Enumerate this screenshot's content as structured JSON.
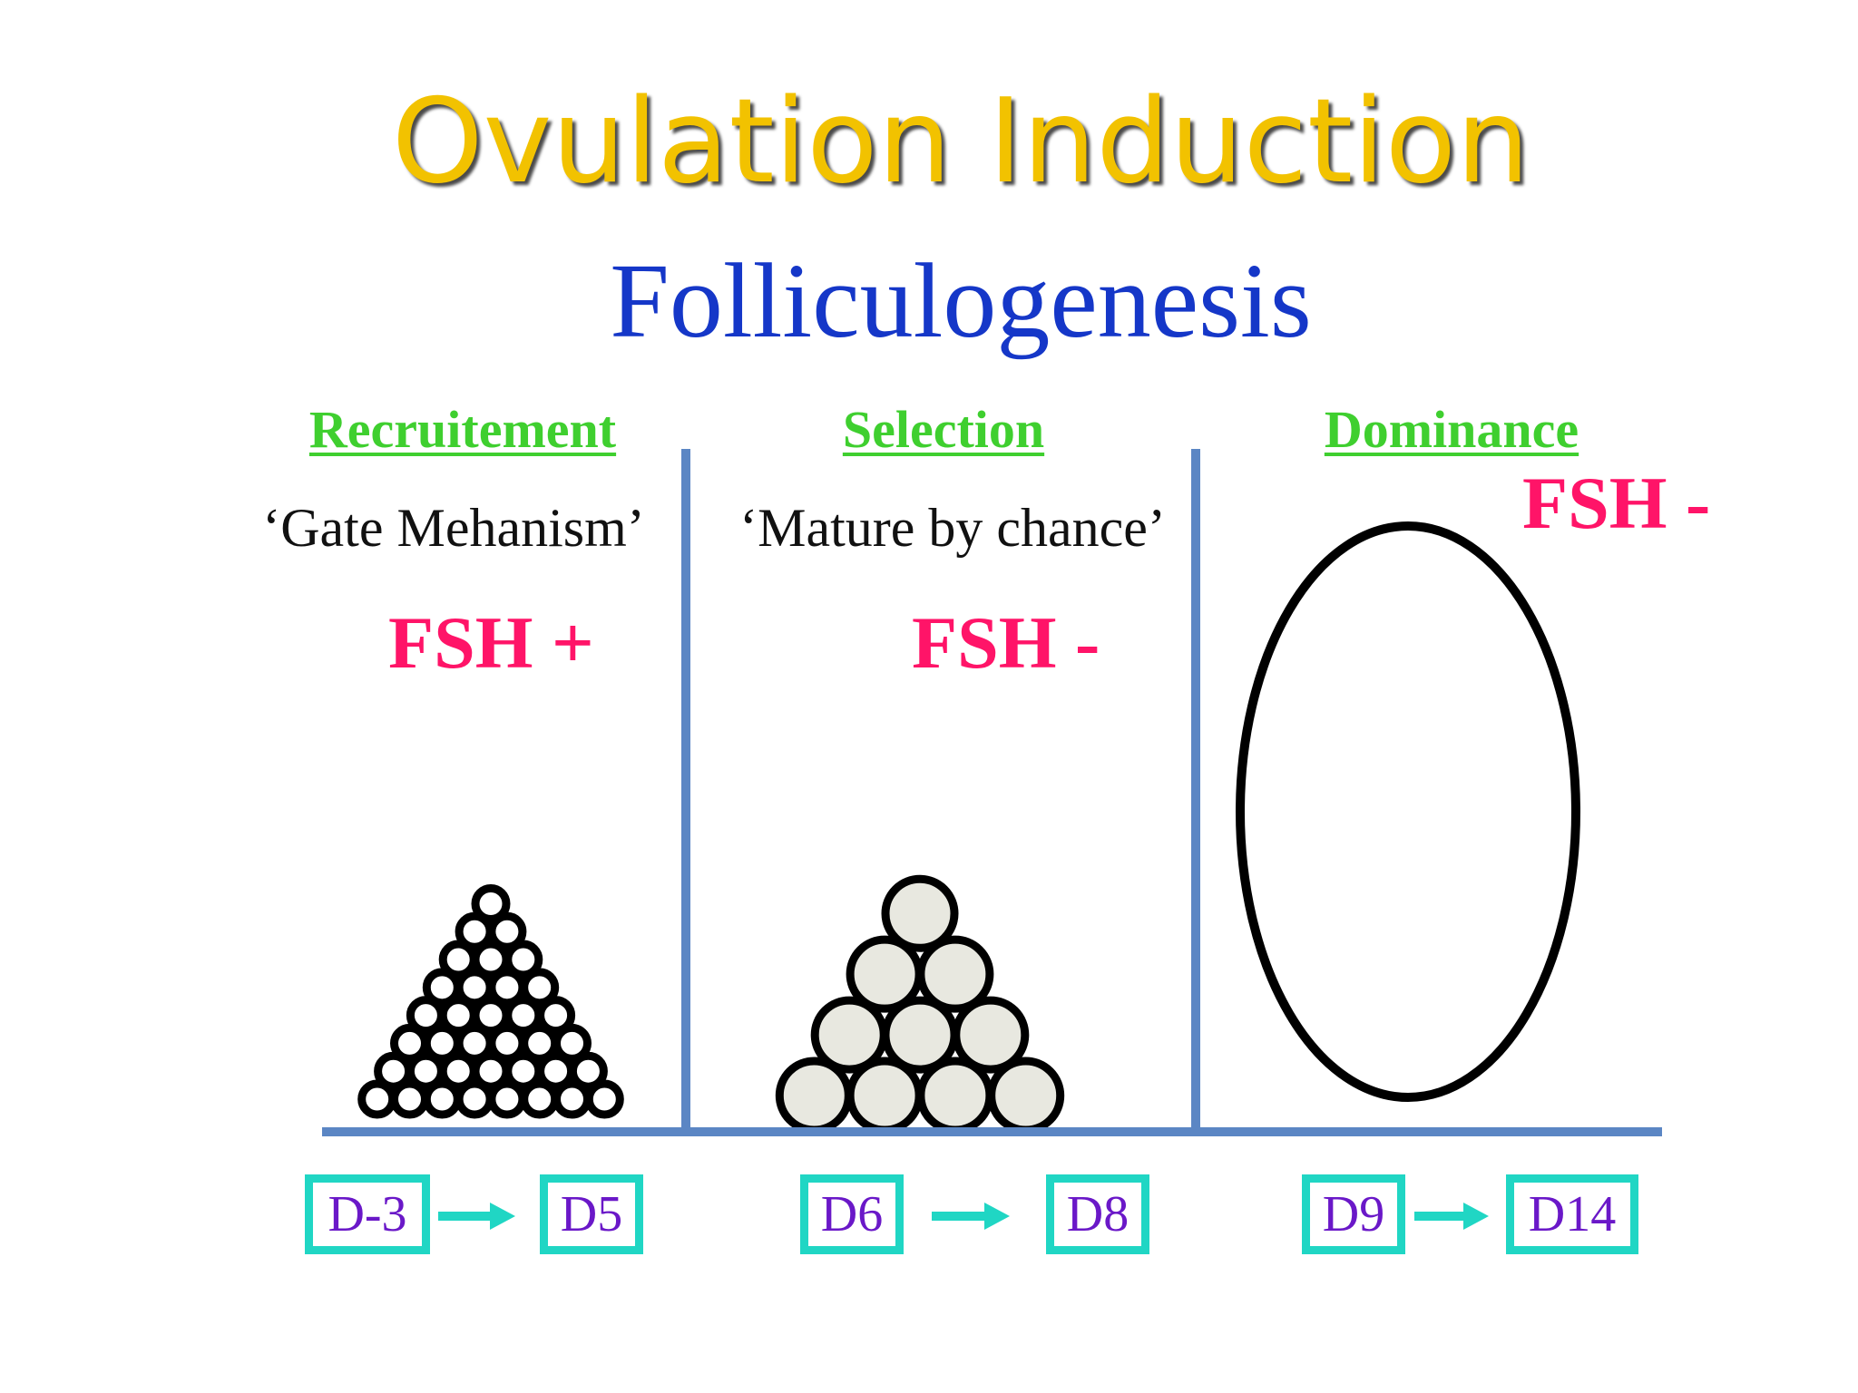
{
  "title": "Ovulation Induction",
  "subtitle": "Folliculogenesis",
  "phases": [
    {
      "name": "Recruitement",
      "quote": "‘Gate Mehanism’",
      "fsh": "FSH +",
      "days": {
        "from": "D-3",
        "to": "D5"
      },
      "follicle_size": "small",
      "follicle_rows": [
        8,
        7,
        6,
        5,
        4,
        3,
        2,
        1
      ]
    },
    {
      "name": "Selection",
      "quote": "‘Mature by chance’",
      "fsh": "FSH -",
      "days": {
        "from": "D6",
        "to": "D8"
      },
      "follicle_size": "medium",
      "follicle_rows": [
        4,
        3,
        2,
        1
      ]
    },
    {
      "name": "Dominance",
      "quote": "",
      "fsh": "FSH -",
      "days": {
        "from": "D9",
        "to": "D14"
      },
      "follicle_size": "dominant",
      "follicle_rows": [
        1
      ]
    }
  ],
  "colors": {
    "title": "#f2c200",
    "subtitle": "#1537c8",
    "phase": "#3fcf2f",
    "fsh": "#ff1468",
    "divider": "#5b86c4",
    "day_box_border": "#20d6c4",
    "day_text": "#6a18c8",
    "arrow": "#20d6c4",
    "follicle_fill": "#e8e8e0"
  }
}
